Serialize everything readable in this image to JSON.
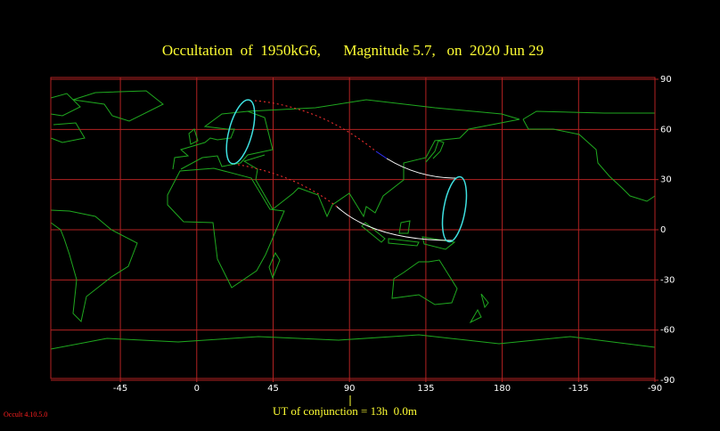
{
  "chart_data": {
    "type": "map",
    "title": "Occultation  of  1950kG6,      Magnitude 5.7,   on  2020 Jun 29",
    "xlim": [
      -86,
      270
    ],
    "xticks": [
      -45,
      0,
      45,
      90,
      135,
      180,
      {
        "value": 225,
        "label": "-135"
      },
      {
        "value": 270,
        "label": "-90"
      }
    ],
    "ylim": [
      -90,
      90
    ],
    "yticks": [
      90,
      60,
      30,
      0,
      -30,
      -60,
      -90
    ],
    "grid": true,
    "conjunction": "UT of conjunction = 13h  0.0m",
    "version": "Occult 4.10.5.0"
  }
}
